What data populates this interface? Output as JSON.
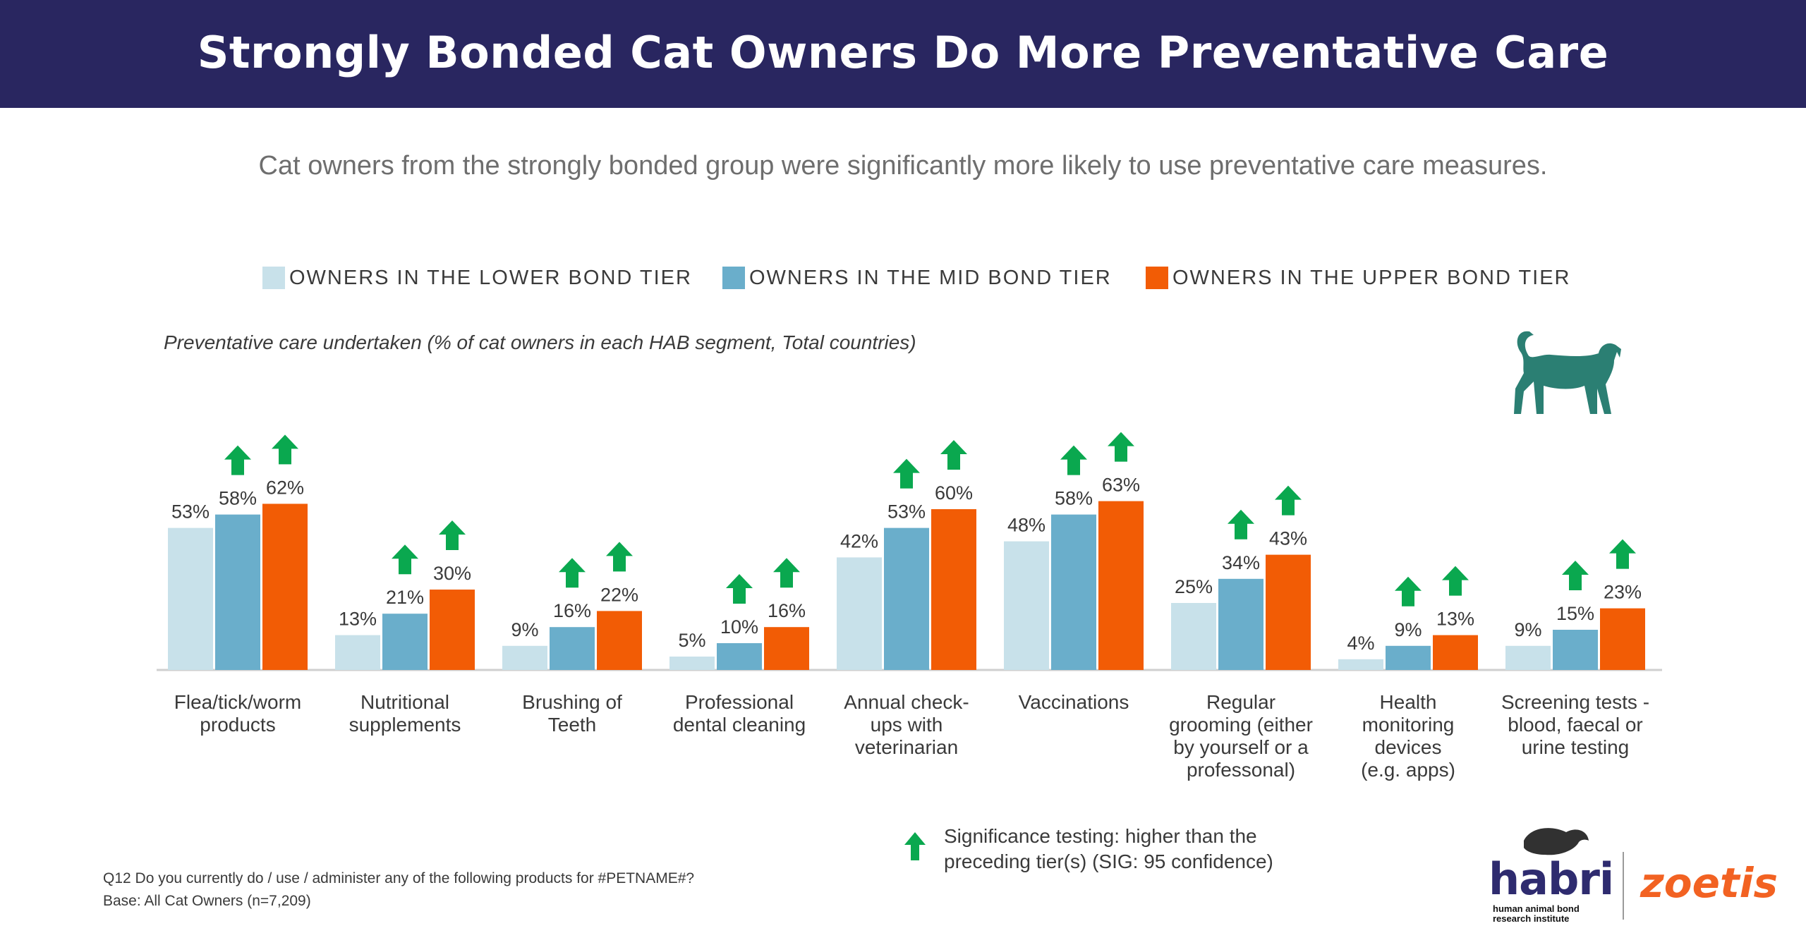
{
  "header": {
    "title": "Strongly Bonded Cat Owners Do More Preventative Care"
  },
  "subtitle": "Cat owners from the strongly bonded group were significantly more likely to use preventative care measures.",
  "legend": [
    {
      "label": "OWNERS IN THE LOWER BOND TIER",
      "color": "#c8e1ea"
    },
    {
      "label": "OWNERS IN THE MID BOND TIER",
      "color": "#6aaecb"
    },
    {
      "label": "OWNERS IN THE UPPER BOND TIER",
      "color": "#f25c05"
    }
  ],
  "caption": "Preventative care undertaken (% of cat owners in each HAB segment, Total countries)",
  "chart_data": {
    "type": "bar",
    "categories": [
      [
        "Flea/tick/worm",
        "products"
      ],
      [
        "Nutritional",
        "supplements"
      ],
      [
        "Brushing of",
        "Teeth"
      ],
      [
        "Professional",
        "dental cleaning"
      ],
      [
        "Annual check-",
        "ups with",
        "veterinarian"
      ],
      [
        "Vaccinations"
      ],
      [
        "Regular",
        "grooming (either",
        "by yourself or a",
        "professonal)"
      ],
      [
        "Health",
        "monitoring",
        "devices",
        "(e.g. apps)"
      ],
      [
        "Screening tests -",
        "blood, faecal or",
        "urine testing"
      ]
    ],
    "series": [
      {
        "name": "OWNERS IN THE LOWER BOND TIER",
        "color": "#c8e1ea",
        "values": [
          53,
          13,
          9,
          5,
          42,
          48,
          25,
          4,
          9
        ]
      },
      {
        "name": "OWNERS IN THE MID BOND TIER",
        "color": "#6aaecb",
        "values": [
          58,
          21,
          16,
          10,
          53,
          58,
          34,
          9,
          15
        ]
      },
      {
        "name": "OWNERS IN THE UPPER BOND TIER",
        "color": "#f25c05",
        "values": [
          62,
          30,
          22,
          16,
          60,
          63,
          43,
          13,
          23
        ]
      }
    ],
    "labels": [
      [
        "53%",
        "13%",
        "9%",
        "5%",
        "42%",
        "48%",
        "25%",
        "4%",
        "9%"
      ],
      [
        "58%",
        "21%",
        "16%",
        "10%",
        "53%",
        "58%",
        "34%",
        "9%",
        "15%"
      ],
      [
        "62%",
        "30%",
        "22%",
        "16%",
        "60%",
        "63%",
        "43%",
        "13%",
        "23%"
      ]
    ],
    "significant": [
      [
        false,
        false,
        false,
        false,
        false,
        false,
        false,
        false,
        false
      ],
      [
        true,
        true,
        true,
        true,
        true,
        true,
        true,
        true,
        true
      ],
      [
        true,
        true,
        true,
        true,
        true,
        true,
        true,
        true,
        true
      ]
    ],
    "ylim": [
      0,
      100
    ],
    "grid": false,
    "legend_position": "top"
  },
  "significance_note": [
    "Significance testing: higher than the",
    "preceding tier(s) (SIG: 95 confidence)"
  ],
  "footnote": [
    "Q12 Do you currently do / use / administer any of the following products for #PETNAME#?",
    "Base: All Cat Owners (n=7,209)"
  ],
  "logos": {
    "habri": "habri",
    "habri_sub": [
      "human animal bond",
      "research institute"
    ],
    "zoetis": "zoetis"
  },
  "colors": {
    "header_bg": "#292660",
    "arrow": "#0aa84f",
    "cat": "#2b7f73"
  },
  "icons": {
    "cat": "cat-icon",
    "arrow": "up-arrow-icon"
  }
}
